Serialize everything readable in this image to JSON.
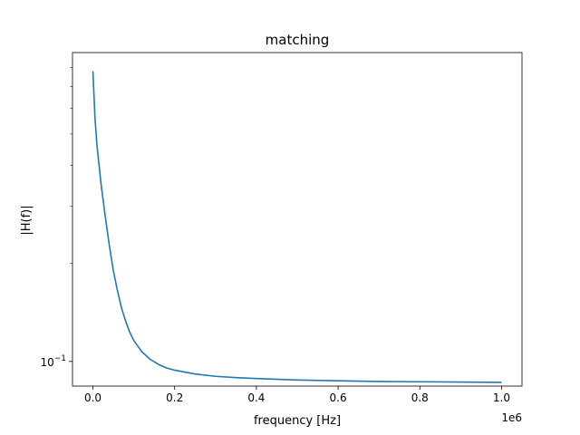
{
  "chart_data": {
    "type": "line",
    "title": "matching",
    "xlabel": "frequency [Hz]",
    "ylabel": "|H(f)|",
    "x_offset_label": "1e6",
    "xscale": "linear",
    "yscale": "log",
    "xlim": [
      -50000,
      1050000
    ],
    "ylim": [
      0.084,
      0.89
    ],
    "grid": false,
    "legend": "none",
    "color": "#1f77b4",
    "x_ticks": [
      {
        "value": 0,
        "label": "0.0"
      },
      {
        "value": 200000,
        "label": "0.2"
      },
      {
        "value": 400000,
        "label": "0.4"
      },
      {
        "value": 600000,
        "label": "0.6"
      },
      {
        "value": 800000,
        "label": "0.8"
      },
      {
        "value": 1000000,
        "label": "1.0"
      }
    ],
    "y_major_ticks": [
      {
        "value": 0.1,
        "base": "10",
        "exponent": "−1"
      }
    ],
    "y_minor_ticks": [
      0.2,
      0.3,
      0.4,
      0.5,
      0.6,
      0.7,
      0.8
    ],
    "series": [
      {
        "x": [
          0,
          5000,
          10000,
          20000,
          30000,
          40000,
          50000,
          60000,
          70000,
          80000,
          90000,
          100000,
          120000,
          140000,
          160000,
          180000,
          200000,
          250000,
          300000,
          350000,
          400000,
          500000,
          600000,
          700000,
          800000,
          900000,
          1000000
        ],
        "y": [
          0.78,
          0.56,
          0.46,
          0.35,
          0.28,
          0.228,
          0.19,
          0.165,
          0.146,
          0.133,
          0.123,
          0.116,
          0.107,
          0.1015,
          0.098,
          0.0955,
          0.094,
          0.0915,
          0.09,
          0.0892,
          0.0886,
          0.0877,
          0.0872,
          0.0868,
          0.0866,
          0.0864,
          0.0862
        ]
      }
    ]
  }
}
